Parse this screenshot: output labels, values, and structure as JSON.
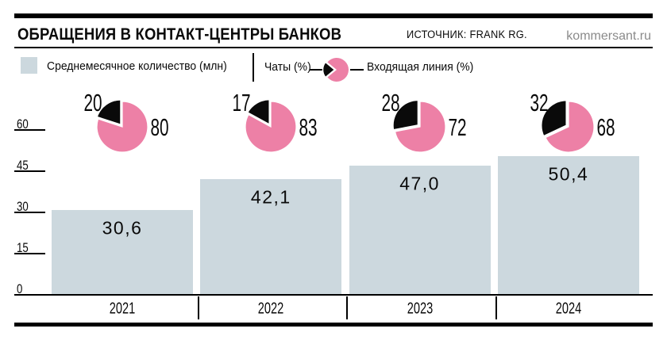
{
  "header": {
    "title": "ОБРАЩЕНИЯ В КОНТАКТ-ЦЕНТРЫ БАНКОВ",
    "source": "ИСТОЧНИК: FRANK RG.",
    "site": "kommersant.ru"
  },
  "legend": {
    "bars": "Среднемесячное количество (млн)",
    "chats": "Чаты (%)",
    "inbound": "Входящая линия (%)"
  },
  "colors": {
    "bar_fill": "#ccd8de",
    "pie_pink": "#ed80a6",
    "pie_black": "#0a0a0a",
    "axis_black": "#000000",
    "site_gray": "#8a8a8a"
  },
  "chart_data": {
    "type": "bar",
    "title": "ОБРАЩЕНИЯ В КОНТАКТ-ЦЕНТРЫ БАНКОВ",
    "source": "FRANK RG.",
    "categories": [
      "2021",
      "2022",
      "2023",
      "2024"
    ],
    "series": [
      {
        "name": "Среднемесячное количество (млн)",
        "type": "bar",
        "values": [
          30.6,
          42.1,
          47.0,
          50.4
        ],
        "value_labels": [
          "30,6",
          "42,1",
          "47,0",
          "50,4"
        ]
      },
      {
        "name": "Чаты (%)",
        "type": "pie_share",
        "values": [
          20,
          17,
          28,
          32
        ],
        "value_labels": [
          "20",
          "17",
          "28",
          "32"
        ]
      },
      {
        "name": "Входящая линия (%)",
        "type": "pie_share",
        "values": [
          80,
          83,
          72,
          68
        ],
        "value_labels": [
          "80",
          "83",
          "72",
          "68"
        ]
      }
    ],
    "yticks": [
      0,
      15,
      30,
      45,
      60
    ],
    "ylim": [
      0,
      60
    ],
    "xlabel": "",
    "ylabel": "",
    "grid": false,
    "legend_position": "top",
    "pie_note": "black slice = chats share, starts at 12 o'clock sweeping counterclockwise, slightly exploded"
  }
}
